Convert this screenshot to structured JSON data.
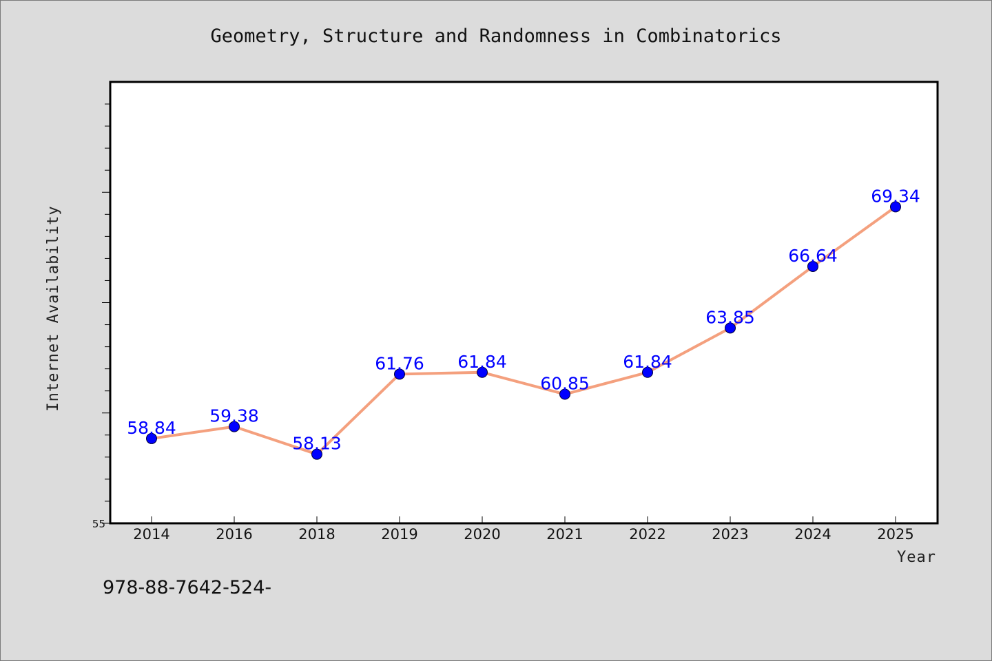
{
  "chart_data": {
    "type": "line",
    "title": "Geometry, Structure and Randomness in Combinatorics",
    "xlabel": "Year",
    "ylabel": "Internet Availability",
    "categories": [
      "2014",
      "2016",
      "2018",
      "2019",
      "2020",
      "2021",
      "2022",
      "2023",
      "2024",
      "2025"
    ],
    "series": [
      {
        "values": [
          58.84,
          59.38,
          58.13,
          61.76,
          61.84,
          60.85,
          61.84,
          63.85,
          66.64,
          69.34
        ],
        "labels": [
          "58.84",
          "59.38",
          "58.13",
          "61.76",
          "61.84",
          "60.85",
          "61.84",
          "63.85",
          "66.64",
          "69.34"
        ]
      }
    ],
    "ylim": [
      55,
      75
    ],
    "y_tick_labels": [
      "55"
    ],
    "grid": false,
    "legend": "none",
    "colors": {
      "line": "#f4a07e",
      "marker": "#0000ff",
      "data_label": "#0000ff",
      "plot_background": "#ffffff",
      "page_background": "#dcdcdc"
    }
  },
  "footnote": "978-88-7642-524-"
}
